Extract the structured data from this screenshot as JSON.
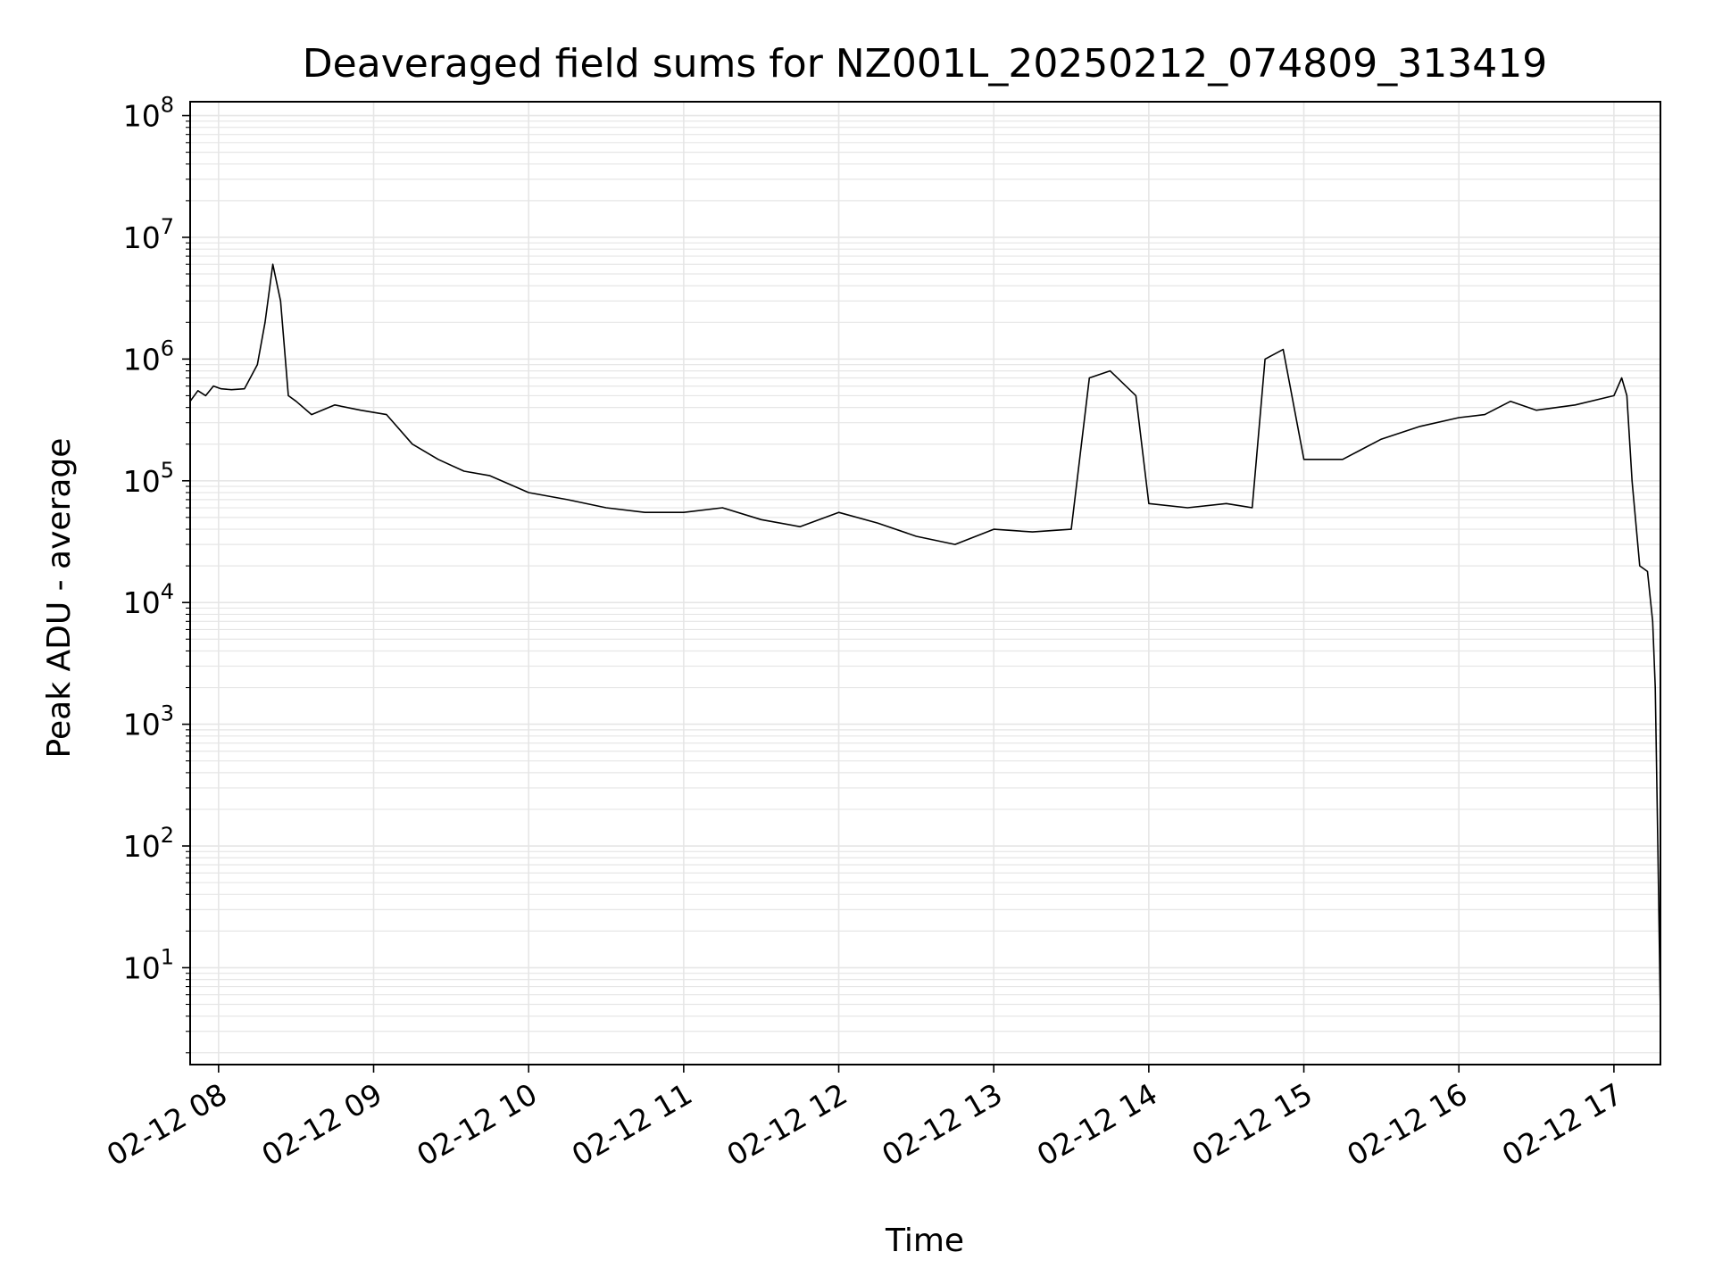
{
  "chart_data": {
    "type": "line",
    "title": "Deaveraged field sums for NZ001L_20250212_074809_313419",
    "xlabel": "Time",
    "ylabel": "Peak ADU - average",
    "yscale": "log",
    "xlim": [
      "02-12 07:49",
      "02-12 17:18"
    ],
    "ylim": [
      1.6,
      130000000
    ],
    "grid": "major and minor",
    "line_color": "#000000",
    "grid_color": "#e6e6e6",
    "x_tick_labels": [
      "02-12 08",
      "02-12 09",
      "02-12 10",
      "02-12 11",
      "02-12 12",
      "02-12 13",
      "02-12 14",
      "02-12 15",
      "02-12 16",
      "02-12 17"
    ],
    "y_ticks": [
      {
        "base": "10",
        "exp": "1",
        "value": 10
      },
      {
        "base": "10",
        "exp": "2",
        "value": 100
      },
      {
        "base": "10",
        "exp": "3",
        "value": 1000
      },
      {
        "base": "10",
        "exp": "4",
        "value": 10000
      },
      {
        "base": "10",
        "exp": "5",
        "value": 100000
      },
      {
        "base": "10",
        "exp": "6",
        "value": 1000000
      },
      {
        "base": "10",
        "exp": "7",
        "value": 10000000
      },
      {
        "base": "10",
        "exp": "8",
        "value": 100000000
      }
    ],
    "series": [
      {
        "x": [
          "02-12 07:49",
          "02-12 07:52",
          "02-12 07:55",
          "02-12 07:58",
          "02-12 08:01",
          "02-12 08:05",
          "02-12 08:10",
          "02-12 08:15",
          "02-12 08:18",
          "02-12 08:21",
          "02-12 08:24",
          "02-12 08:27",
          "02-12 08:30",
          "02-12 08:36",
          "02-12 08:45",
          "02-12 08:55",
          "02-12 09:05",
          "02-12 09:15",
          "02-12 09:25",
          "02-12 09:35",
          "02-12 09:45",
          "02-12 10:00",
          "02-12 10:15",
          "02-12 10:30",
          "02-12 10:45",
          "02-12 11:00",
          "02-12 11:15",
          "02-12 11:30",
          "02-12 11:45",
          "02-12 12:00",
          "02-12 12:15",
          "02-12 12:30",
          "02-12 12:45",
          "02-12 13:00",
          "02-12 13:15",
          "02-12 13:30",
          "02-12 13:37",
          "02-12 13:45",
          "02-12 13:55",
          "02-12 14:00",
          "02-12 14:15",
          "02-12 14:30",
          "02-12 14:40",
          "02-12 14:45",
          "02-12 14:52",
          "02-12 15:00",
          "02-12 15:15",
          "02-12 15:30",
          "02-12 15:45",
          "02-12 16:00",
          "02-12 16:10",
          "02-12 16:20",
          "02-12 16:30",
          "02-12 16:45",
          "02-12 17:00",
          "02-12 17:03",
          "02-12 17:05",
          "02-12 17:07",
          "02-12 17:10",
          "02-12 17:13",
          "02-12 17:15",
          "02-12 17:16",
          "02-12 17:17",
          "02-12 17:18"
        ],
        "y": [
          450000,
          550000,
          500000,
          600000,
          570000,
          560000,
          570000,
          900000,
          2000000,
          6000000,
          3000000,
          500000,
          450000,
          350000,
          420000,
          380000,
          350000,
          200000,
          150000,
          120000,
          110000,
          80000,
          70000,
          60000,
          55000,
          55000,
          60000,
          48000,
          42000,
          55000,
          45000,
          35000,
          30000,
          40000,
          38000,
          40000,
          700000,
          800000,
          500000,
          65000,
          60000,
          65000,
          60000,
          1000000,
          1200000,
          150000,
          150000,
          220000,
          280000,
          330000,
          350000,
          450000,
          380000,
          420000,
          500000,
          700000,
          500000,
          100000,
          20000,
          18000,
          7000,
          2000,
          100,
          4
        ]
      }
    ]
  }
}
